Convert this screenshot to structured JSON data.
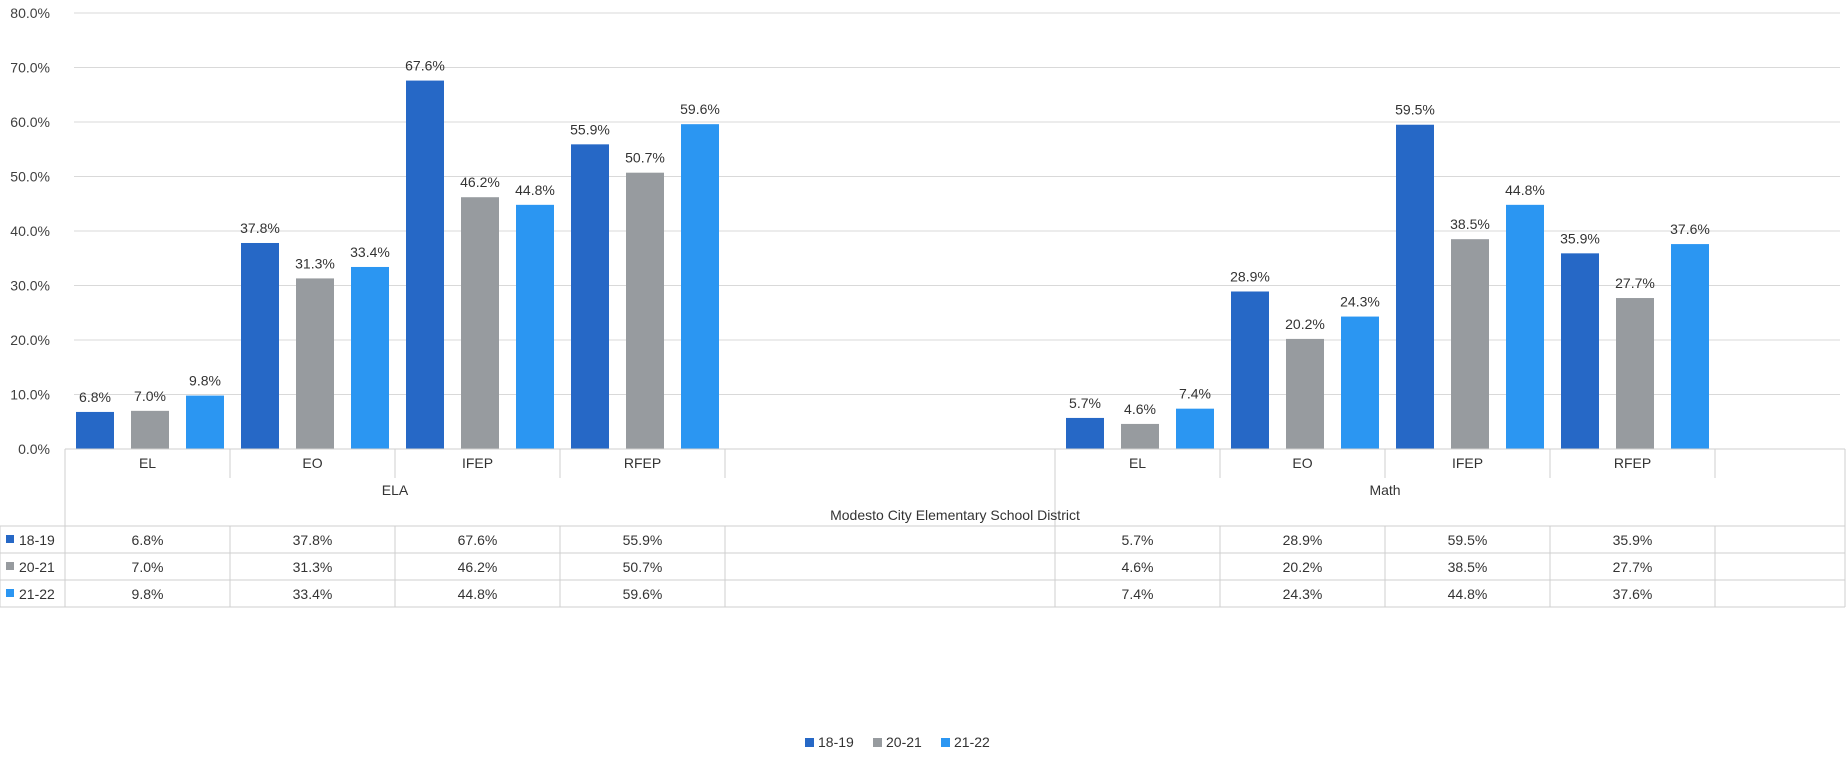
{
  "chart_data": {
    "type": "bar",
    "title": "",
    "xlabel": "Modesto City Elementary School District",
    "ylabel": "",
    "ylim": [
      0,
      80
    ],
    "yticks": [
      "0.0%",
      "10.0%",
      "20.0%",
      "30.0%",
      "40.0%",
      "50.0%",
      "60.0%",
      "70.0%",
      "80.0%"
    ],
    "groups": [
      "ELA",
      "Math"
    ],
    "categories": [
      "EL",
      "EO",
      "IFEP",
      "RFEP"
    ],
    "series": [
      {
        "name": "18-19",
        "color": "#2668c6",
        "values": {
          "ELA": [
            6.8,
            37.8,
            67.6,
            55.9
          ],
          "Math": [
            5.7,
            28.9,
            59.5,
            35.9
          ]
        },
        "labels": {
          "ELA": [
            "6.8%",
            "37.8%",
            "67.6%",
            "55.9%"
          ],
          "Math": [
            "5.7%",
            "28.9%",
            "59.5%",
            "35.9%"
          ]
        }
      },
      {
        "name": "20-21",
        "color": "#979b9f",
        "values": {
          "ELA": [
            7.0,
            31.3,
            46.2,
            50.7
          ],
          "Math": [
            4.6,
            20.2,
            38.5,
            27.7
          ]
        },
        "labels": {
          "ELA": [
            "7.0%",
            "31.3%",
            "46.2%",
            "50.7%"
          ],
          "Math": [
            "4.6%",
            "20.2%",
            "38.5%",
            "27.7%"
          ]
        }
      },
      {
        "name": "21-22",
        "color": "#2b96f2",
        "values": {
          "ELA": [
            9.8,
            33.4,
            44.8,
            59.6
          ],
          "Math": [
            7.4,
            24.3,
            44.8,
            37.6
          ]
        },
        "labels": {
          "ELA": [
            "9.8%",
            "33.4%",
            "44.8%",
            "59.6%"
          ],
          "Math": [
            "7.4%",
            "24.3%",
            "44.8%",
            "37.6%"
          ]
        }
      }
    ],
    "grid": true,
    "legend": "bottom-center",
    "data_table": true
  }
}
